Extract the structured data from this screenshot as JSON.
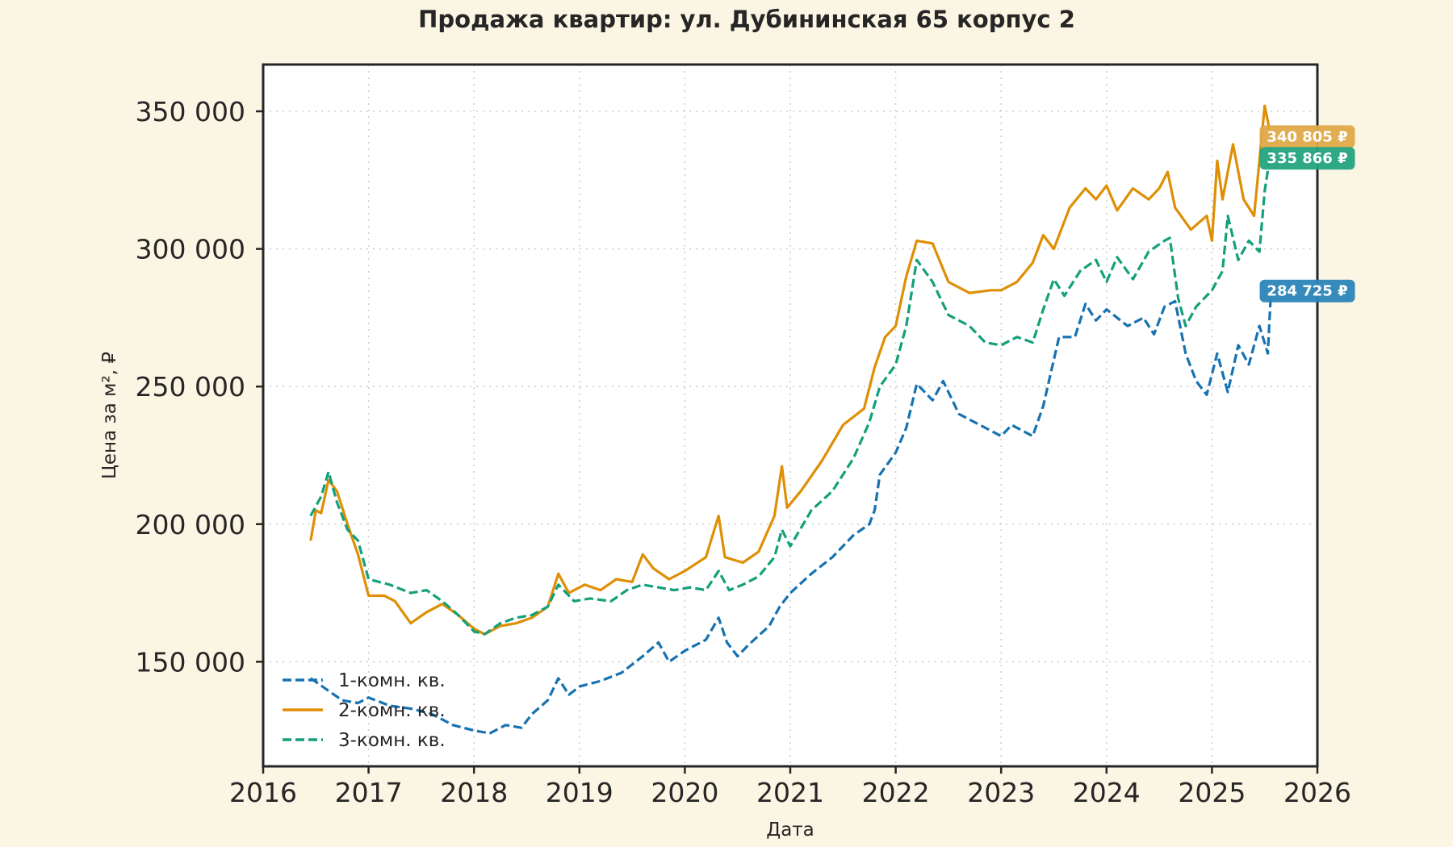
{
  "chart_data": {
    "type": "line",
    "title": "Продажа квартир: ул. Дубининская 65 корпус 2",
    "xlabel": "Дата",
    "ylabel": "Цена за м², ₽",
    "xlim": [
      2016,
      2026
    ],
    "ylim": [
      112000,
      367000
    ],
    "x_ticks": [
      "2016",
      "2017",
      "2018",
      "2019",
      "2020",
      "2021",
      "2022",
      "2023",
      "2024",
      "2025",
      "2026"
    ],
    "y_ticks": [
      {
        "value": 150000,
        "label": "150 000"
      },
      {
        "value": 200000,
        "label": "200 000"
      },
      {
        "value": 250000,
        "label": "250 000"
      },
      {
        "value": 300000,
        "label": "300 000"
      },
      {
        "value": 350000,
        "label": "350 000"
      }
    ],
    "grid": true,
    "legend_position": "bottom-left",
    "background": "#fbf5e3",
    "series": [
      {
        "name": "1-комн. кв.",
        "color": "#1672b0",
        "style": "dashed",
        "end_label": "284 725 ₽",
        "points": [
          [
            2016.45,
            144000
          ],
          [
            2016.6,
            140000
          ],
          [
            2016.75,
            136000
          ],
          [
            2016.9,
            135000
          ],
          [
            2017.0,
            137000
          ],
          [
            2017.2,
            134000
          ],
          [
            2017.4,
            133000
          ],
          [
            2017.6,
            131000
          ],
          [
            2017.8,
            127000
          ],
          [
            2018.0,
            125000
          ],
          [
            2018.15,
            124000
          ],
          [
            2018.3,
            127000
          ],
          [
            2018.45,
            126000
          ],
          [
            2018.55,
            131000
          ],
          [
            2018.7,
            136000
          ],
          [
            2018.8,
            144000
          ],
          [
            2018.9,
            138000
          ],
          [
            2019.0,
            141000
          ],
          [
            2019.2,
            143000
          ],
          [
            2019.4,
            146000
          ],
          [
            2019.6,
            152000
          ],
          [
            2019.75,
            157000
          ],
          [
            2019.85,
            150000
          ],
          [
            2020.0,
            154000
          ],
          [
            2020.2,
            158000
          ],
          [
            2020.32,
            166000
          ],
          [
            2020.4,
            157000
          ],
          [
            2020.5,
            152000
          ],
          [
            2020.6,
            156000
          ],
          [
            2020.8,
            163000
          ],
          [
            2020.9,
            170000
          ],
          [
            2021.0,
            175000
          ],
          [
            2021.2,
            182000
          ],
          [
            2021.4,
            188000
          ],
          [
            2021.6,
            196000
          ],
          [
            2021.75,
            200000
          ],
          [
            2021.8,
            205000
          ],
          [
            2021.85,
            218000
          ],
          [
            2022.0,
            226000
          ],
          [
            2022.1,
            235000
          ],
          [
            2022.2,
            251000
          ],
          [
            2022.35,
            245000
          ],
          [
            2022.45,
            252000
          ],
          [
            2022.6,
            240000
          ],
          [
            2022.8,
            236000
          ],
          [
            2023.0,
            232000
          ],
          [
            2023.1,
            236000
          ],
          [
            2023.3,
            232000
          ],
          [
            2023.4,
            243000
          ],
          [
            2023.55,
            268000
          ],
          [
            2023.7,
            268000
          ],
          [
            2023.8,
            280000
          ],
          [
            2023.9,
            274000
          ],
          [
            2024.0,
            278000
          ],
          [
            2024.2,
            272000
          ],
          [
            2024.35,
            275000
          ],
          [
            2024.45,
            269000
          ],
          [
            2024.55,
            279000
          ],
          [
            2024.65,
            281000
          ],
          [
            2024.75,
            262000
          ],
          [
            2024.85,
            252000
          ],
          [
            2024.95,
            247000
          ],
          [
            2025.05,
            262000
          ],
          [
            2025.15,
            248000
          ],
          [
            2025.25,
            265000
          ],
          [
            2025.35,
            258000
          ],
          [
            2025.45,
            272000
          ],
          [
            2025.53,
            262000
          ],
          [
            2025.56,
            284725
          ]
        ]
      },
      {
        "name": "2-комн. кв.",
        "color": "#de8f05",
        "style": "solid",
        "end_label": "340 805 ₽",
        "points": [
          [
            2016.45,
            194000
          ],
          [
            2016.5,
            205000
          ],
          [
            2016.55,
            204000
          ],
          [
            2016.62,
            216000
          ],
          [
            2016.7,
            212000
          ],
          [
            2016.8,
            200000
          ],
          [
            2016.9,
            189000
          ],
          [
            2017.0,
            174000
          ],
          [
            2017.15,
            174000
          ],
          [
            2017.25,
            172000
          ],
          [
            2017.4,
            164000
          ],
          [
            2017.55,
            168000
          ],
          [
            2017.7,
            171000
          ],
          [
            2017.85,
            167000
          ],
          [
            2018.0,
            162000
          ],
          [
            2018.1,
            160000
          ],
          [
            2018.25,
            163000
          ],
          [
            2018.4,
            164000
          ],
          [
            2018.55,
            166000
          ],
          [
            2018.7,
            170000
          ],
          [
            2018.8,
            182000
          ],
          [
            2018.9,
            175000
          ],
          [
            2019.05,
            178000
          ],
          [
            2019.2,
            176000
          ],
          [
            2019.35,
            180000
          ],
          [
            2019.5,
            179000
          ],
          [
            2019.6,
            189000
          ],
          [
            2019.7,
            184000
          ],
          [
            2019.85,
            180000
          ],
          [
            2020.0,
            183000
          ],
          [
            2020.2,
            188000
          ],
          [
            2020.32,
            203000
          ],
          [
            2020.38,
            188000
          ],
          [
            2020.55,
            186000
          ],
          [
            2020.7,
            190000
          ],
          [
            2020.85,
            203000
          ],
          [
            2020.92,
            221000
          ],
          [
            2020.97,
            206000
          ],
          [
            2021.1,
            212000
          ],
          [
            2021.3,
            223000
          ],
          [
            2021.5,
            236000
          ],
          [
            2021.7,
            242000
          ],
          [
            2021.8,
            257000
          ],
          [
            2021.9,
            268000
          ],
          [
            2022.0,
            272000
          ],
          [
            2022.1,
            290000
          ],
          [
            2022.2,
            303000
          ],
          [
            2022.35,
            302000
          ],
          [
            2022.5,
            288000
          ],
          [
            2022.7,
            284000
          ],
          [
            2022.9,
            285000
          ],
          [
            2023.0,
            285000
          ],
          [
            2023.15,
            288000
          ],
          [
            2023.3,
            295000
          ],
          [
            2023.4,
            305000
          ],
          [
            2023.5,
            300000
          ],
          [
            2023.65,
            315000
          ],
          [
            2023.8,
            322000
          ],
          [
            2023.9,
            318000
          ],
          [
            2024.0,
            323000
          ],
          [
            2024.1,
            314000
          ],
          [
            2024.25,
            322000
          ],
          [
            2024.4,
            318000
          ],
          [
            2024.5,
            322000
          ],
          [
            2024.58,
            328000
          ],
          [
            2024.65,
            315000
          ],
          [
            2024.8,
            307000
          ],
          [
            2024.95,
            312000
          ],
          [
            2025.0,
            303000
          ],
          [
            2025.05,
            332000
          ],
          [
            2025.1,
            318000
          ],
          [
            2025.2,
            338000
          ],
          [
            2025.3,
            318000
          ],
          [
            2025.4,
            312000
          ],
          [
            2025.5,
            352000
          ],
          [
            2025.56,
            340805
          ]
        ]
      },
      {
        "name": "3-комн. кв.",
        "color": "#13a07a",
        "style": "dashed",
        "end_label": "335 866 ₽",
        "points": [
          [
            2016.45,
            203000
          ],
          [
            2016.55,
            210000
          ],
          [
            2016.62,
            219000
          ],
          [
            2016.7,
            208000
          ],
          [
            2016.8,
            198000
          ],
          [
            2016.9,
            194000
          ],
          [
            2017.0,
            180000
          ],
          [
            2017.2,
            178000
          ],
          [
            2017.4,
            175000
          ],
          [
            2017.55,
            176000
          ],
          [
            2017.7,
            172000
          ],
          [
            2017.85,
            167000
          ],
          [
            2018.0,
            161000
          ],
          [
            2018.1,
            160000
          ],
          [
            2018.25,
            164000
          ],
          [
            2018.4,
            166000
          ],
          [
            2018.55,
            167000
          ],
          [
            2018.7,
            170000
          ],
          [
            2018.8,
            178000
          ],
          [
            2018.95,
            172000
          ],
          [
            2019.1,
            173000
          ],
          [
            2019.3,
            172000
          ],
          [
            2019.45,
            176000
          ],
          [
            2019.6,
            178000
          ],
          [
            2019.75,
            177000
          ],
          [
            2019.9,
            176000
          ],
          [
            2020.05,
            177000
          ],
          [
            2020.2,
            176000
          ],
          [
            2020.32,
            183000
          ],
          [
            2020.42,
            176000
          ],
          [
            2020.55,
            178000
          ],
          [
            2020.7,
            181000
          ],
          [
            2020.85,
            188000
          ],
          [
            2020.92,
            198000
          ],
          [
            2021.0,
            192000
          ],
          [
            2021.2,
            205000
          ],
          [
            2021.4,
            212000
          ],
          [
            2021.6,
            224000
          ],
          [
            2021.75,
            237000
          ],
          [
            2021.85,
            250000
          ],
          [
            2022.0,
            258000
          ],
          [
            2022.1,
            272000
          ],
          [
            2022.2,
            296000
          ],
          [
            2022.35,
            288000
          ],
          [
            2022.5,
            276000
          ],
          [
            2022.7,
            272000
          ],
          [
            2022.85,
            266000
          ],
          [
            2023.0,
            265000
          ],
          [
            2023.15,
            268000
          ],
          [
            2023.3,
            266000
          ],
          [
            2023.4,
            278000
          ],
          [
            2023.5,
            289000
          ],
          [
            2023.6,
            283000
          ],
          [
            2023.75,
            292000
          ],
          [
            2023.9,
            296000
          ],
          [
            2024.0,
            288000
          ],
          [
            2024.1,
            297000
          ],
          [
            2024.25,
            289000
          ],
          [
            2024.4,
            299000
          ],
          [
            2024.55,
            303000
          ],
          [
            2024.6,
            304000
          ],
          [
            2024.68,
            282000
          ],
          [
            2024.75,
            272000
          ],
          [
            2024.85,
            279000
          ],
          [
            2025.0,
            285000
          ],
          [
            2025.1,
            292000
          ],
          [
            2025.15,
            312000
          ],
          [
            2025.25,
            296000
          ],
          [
            2025.35,
            303000
          ],
          [
            2025.45,
            299000
          ],
          [
            2025.5,
            321000
          ],
          [
            2025.56,
            335866
          ]
        ]
      }
    ]
  }
}
